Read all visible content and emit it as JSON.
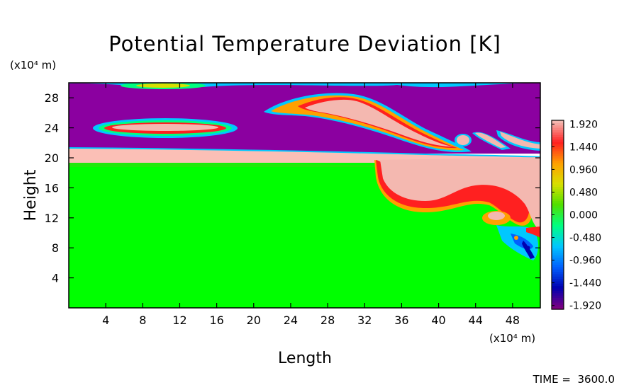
{
  "chart_data": {
    "type": "heatmap",
    "title": "Potential Temperature Deviation [K]",
    "xlabel": "Length",
    "ylabel": "Height",
    "x_unit": "(x10⁴ m)",
    "y_unit": "(x10⁴ m)",
    "footer": "TIME =  3600.0",
    "xlim": [
      0,
      51
    ],
    "ylim": [
      0,
      30
    ],
    "x_ticks": [
      4,
      8,
      12,
      16,
      20,
      24,
      28,
      32,
      36,
      40,
      44,
      48
    ],
    "y_ticks": [
      4,
      8,
      12,
      16,
      20,
      24,
      28
    ],
    "colorbar": {
      "range": [
        -2.0,
        2.0
      ],
      "tick_values": [
        1.92,
        1.44,
        0.96,
        0.48,
        0.0,
        -0.48,
        -0.96,
        -1.44,
        -1.92
      ],
      "tick_labels": [
        "1.920",
        "1.440",
        "0.960",
        "0.480",
        "0.000",
        "-0.480",
        "-0.960",
        "-1.440",
        "-1.920"
      ],
      "colors": [
        "#800080",
        "#0000b0",
        "#0060ff",
        "#00c8ff",
        "#00ff80",
        "#50e000",
        "#d8e000",
        "#ffa000",
        "#ff2020",
        "#f4b8b0"
      ]
    },
    "regions": {
      "lower_layer": {
        "value": 0.0,
        "color": "#00ff00",
        "y_range": [
          0,
          19.6
        ]
      },
      "inversion_band": {
        "value": 2.0,
        "color": "#fbbfb6",
        "y_range": [
          19.6,
          21.2
        ]
      },
      "upper_layer": {
        "value": -2.0,
        "color": "#8b00a0",
        "y_range": [
          21.2,
          30
        ]
      },
      "warm_blob_left": {
        "x_center": 10.5,
        "y_center": 24.1,
        "x_halfwidth": 8.5,
        "y_halfwidth": 1.0
      },
      "warm_tongue_upper": {
        "x_range": [
          22,
          51
        ],
        "y_range": [
          21,
          28.5
        ]
      },
      "warm_plume_right": {
        "x_range": [
          34,
          51
        ],
        "y_range": [
          7,
          20
        ]
      }
    }
  }
}
